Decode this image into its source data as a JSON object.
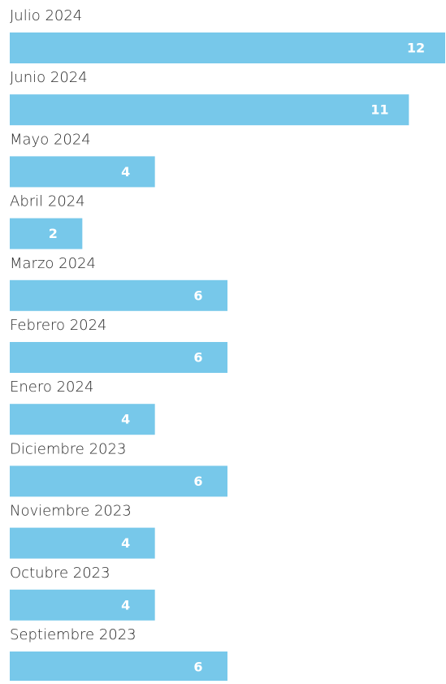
{
  "chart_data": {
    "type": "bar",
    "orientation": "horizontal",
    "color": "#77c8ea",
    "categories": [
      "Julio 2024",
      "Junio 2024",
      "Mayo 2024",
      "Abril 2024",
      "Marzo 2024",
      "Febrero 2024",
      "Enero 2024",
      "Diciembre 2023",
      "Noviembre 2023",
      "Octubre 2023",
      "Septiembre 2023"
    ],
    "values": [
      12,
      11,
      4,
      2,
      6,
      6,
      4,
      6,
      4,
      4,
      6
    ]
  }
}
